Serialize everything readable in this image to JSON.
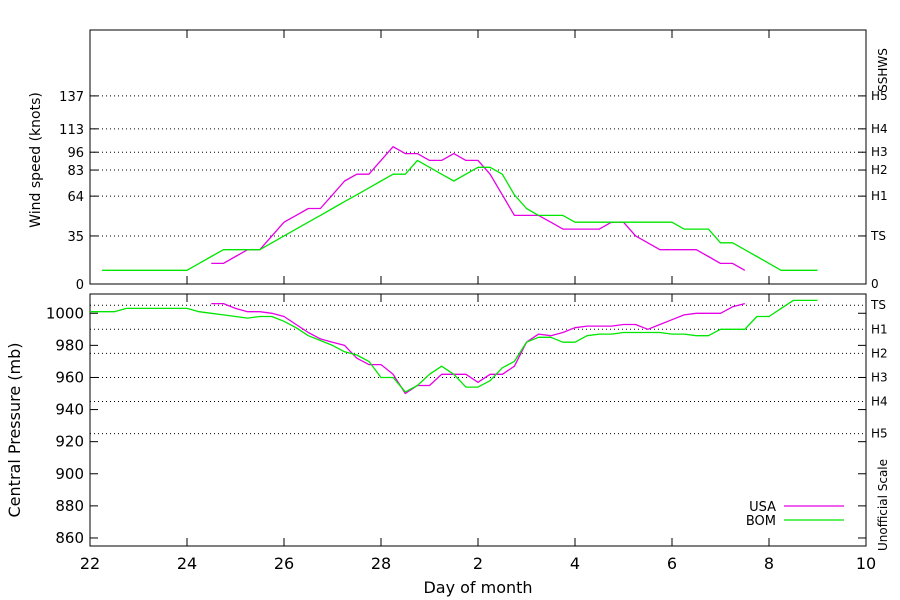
{
  "chart_data": [
    {
      "type": "line",
      "panel": "wind",
      "ylabel": "Wind speed (knots)",
      "right_label": "SSHWS",
      "ylim": [
        0,
        185
      ],
      "xlim": [
        22,
        38
      ],
      "yticks": [
        0,
        35,
        64,
        83,
        96,
        113,
        137
      ],
      "category_lines": [
        {
          "value": 0,
          "label": "0",
          "grid": false
        },
        {
          "value": 35,
          "label": "TS",
          "grid": true
        },
        {
          "value": 64,
          "label": "H1",
          "grid": true
        },
        {
          "value": 83,
          "label": "H2",
          "grid": true
        },
        {
          "value": 96,
          "label": "H3",
          "grid": true
        },
        {
          "value": 113,
          "label": "H4",
          "grid": true
        },
        {
          "value": 137,
          "label": "H5",
          "grid": true
        }
      ],
      "series": [
        {
          "name": "USA",
          "color": "#e600e6",
          "x": [
            24.5,
            24.75,
            25.0,
            25.25,
            25.5,
            25.75,
            26.0,
            26.25,
            26.5,
            26.75,
            27.0,
            27.25,
            27.5,
            27.75,
            28.0,
            28.25,
            28.5,
            28.75,
            29.0,
            29.25,
            29.5,
            29.75,
            30.0,
            30.25,
            30.5,
            30.75,
            31.0,
            31.25,
            31.5,
            31.75,
            32.0,
            32.25,
            32.5,
            32.75,
            33.0,
            33.25,
            33.5,
            33.75,
            34.0,
            34.25,
            34.5,
            34.75,
            35.0,
            35.25,
            35.5
          ],
          "values": [
            15,
            15,
            20,
            25,
            25,
            35,
            45,
            50,
            55,
            55,
            65,
            75,
            80,
            80,
            90,
            100,
            95,
            95,
            90,
            90,
            95,
            90,
            90,
            80,
            65,
            50,
            50,
            50,
            45,
            40,
            40,
            40,
            40,
            45,
            45,
            35,
            30,
            25,
            25,
            25,
            25,
            20,
            15,
            15,
            10
          ]
        },
        {
          "name": "BOM",
          "color": "#00e600",
          "x": [
            22.25,
            22.5,
            22.75,
            23.0,
            23.25,
            23.5,
            23.75,
            24.0,
            24.25,
            24.5,
            24.75,
            25.0,
            25.25,
            25.5,
            25.75,
            26.0,
            26.25,
            26.5,
            26.75,
            27.0,
            27.25,
            27.5,
            27.75,
            28.0,
            28.25,
            28.5,
            28.75,
            29.0,
            29.25,
            29.5,
            29.75,
            30.0,
            30.25,
            30.5,
            30.75,
            31.0,
            31.25,
            31.5,
            31.75,
            32.0,
            32.25,
            32.5,
            32.75,
            33.0,
            33.25,
            33.5,
            33.75,
            34.0,
            34.25,
            34.5,
            34.75,
            35.0,
            35.25,
            35.5,
            35.75,
            36.0,
            36.25,
            36.5,
            36.75,
            37.0
          ],
          "values": [
            10,
            10,
            10,
            10,
            10,
            10,
            10,
            10,
            15,
            20,
            25,
            25,
            25,
            25,
            30,
            35,
            40,
            45,
            50,
            55,
            60,
            65,
            70,
            75,
            80,
            80,
            90,
            85,
            80,
            75,
            80,
            85,
            85,
            80,
            65,
            55,
            50,
            50,
            50,
            45,
            45,
            45,
            45,
            45,
            45,
            45,
            45,
            45,
            40,
            40,
            40,
            30,
            30,
            25,
            20,
            15,
            10,
            10,
            10,
            10
          ]
        }
      ]
    },
    {
      "type": "line",
      "panel": "pressure",
      "xlabel": "Day of month",
      "ylabel": "Central Pressure (mb)",
      "right_label": "Unofficial Scale",
      "ylim": [
        855,
        1012
      ],
      "xlim": [
        22,
        38
      ],
      "xticks": [
        22,
        24,
        26,
        28,
        30,
        32,
        34,
        36,
        38
      ],
      "xtick_labels": [
        "22",
        "24",
        "26",
        "28",
        "2",
        "4",
        "6",
        "8",
        "10"
      ],
      "yticks": [
        860,
        880,
        900,
        920,
        940,
        960,
        980,
        1000
      ],
      "category_lines": [
        {
          "value": 1005,
          "label": "TS"
        },
        {
          "value": 990,
          "label": "H1"
        },
        {
          "value": 975,
          "label": "H2"
        },
        {
          "value": 960,
          "label": "H3"
        },
        {
          "value": 945,
          "label": "H4"
        },
        {
          "value": 925,
          "label": "H5"
        }
      ],
      "series": [
        {
          "name": "USA",
          "color": "#e600e6",
          "x": [
            24.5,
            24.75,
            25.0,
            25.25,
            25.5,
            25.75,
            26.0,
            26.25,
            26.5,
            26.75,
            27.0,
            27.25,
            27.5,
            27.75,
            28.0,
            28.25,
            28.5,
            28.75,
            29.0,
            29.25,
            29.5,
            29.75,
            30.0,
            30.25,
            30.5,
            30.75,
            31.0,
            31.25,
            31.5,
            31.75,
            32.0,
            32.25,
            32.5,
            32.75,
            33.0,
            33.25,
            33.5,
            33.75,
            34.0,
            34.25,
            34.5,
            34.75,
            35.0,
            35.25,
            35.5
          ],
          "values": [
            1006,
            1006,
            1003,
            1001,
            1001,
            1000,
            998,
            993,
            988,
            984,
            982,
            980,
            972,
            968,
            968,
            962,
            950,
            955,
            955,
            962,
            962,
            962,
            957,
            962,
            962,
            967,
            982,
            987,
            986,
            988,
            991,
            992,
            992,
            992,
            993,
            993,
            990,
            993,
            996,
            999,
            1000,
            1000,
            1000,
            1004,
            1006
          ]
        },
        {
          "name": "BOM",
          "color": "#00e600",
          "x": [
            22.0,
            22.25,
            22.5,
            22.75,
            23.0,
            23.25,
            23.5,
            23.75,
            24.0,
            24.25,
            24.5,
            24.75,
            25.0,
            25.25,
            25.5,
            25.75,
            26.0,
            26.25,
            26.5,
            26.75,
            27.0,
            27.25,
            27.5,
            27.75,
            28.0,
            28.25,
            28.5,
            28.75,
            29.0,
            29.25,
            29.5,
            29.75,
            30.0,
            30.25,
            30.5,
            30.75,
            31.0,
            31.25,
            31.5,
            31.75,
            32.0,
            32.25,
            32.5,
            32.75,
            33.0,
            33.25,
            33.5,
            33.75,
            34.0,
            34.25,
            34.5,
            34.75,
            35.0,
            35.25,
            35.5,
            35.75,
            36.0,
            36.25,
            36.5,
            36.75,
            37.0
          ],
          "values": [
            1001,
            1001,
            1001,
            1003,
            1003,
            1003,
            1003,
            1003,
            1003,
            1001,
            1000,
            999,
            998,
            997,
            998,
            998,
            995,
            991,
            986,
            983,
            980,
            976,
            974,
            970,
            960,
            960,
            951,
            955,
            962,
            967,
            962,
            954,
            954,
            958,
            966,
            970,
            982,
            985,
            985,
            982,
            982,
            986,
            987,
            987,
            988,
            988,
            988,
            988,
            987,
            987,
            986,
            986,
            990,
            990,
            990,
            998,
            998,
            1003,
            1008,
            1008,
            1008
          ]
        }
      ],
      "legend": {
        "position": "bottom-right",
        "entries": [
          "USA",
          "BOM"
        ]
      }
    }
  ]
}
